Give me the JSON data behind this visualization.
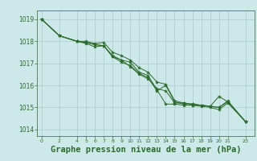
{
  "background_color": "#cce8e8",
  "grid_color": "#aacccc",
  "line_color": "#2d6b2d",
  "marker_color": "#2d6b2d",
  "title": "Graphe pression niveau de la mer (hPa)",
  "title_fontsize": 7.5,
  "ylim": [
    1013.7,
    1019.4
  ],
  "yticks": [
    1014,
    1015,
    1016,
    1017,
    1018,
    1019
  ],
  "xlim": [
    -0.5,
    24.0
  ],
  "xticks": [
    0,
    2,
    4,
    5,
    6,
    7,
    8,
    9,
    10,
    11,
    12,
    13,
    14,
    15,
    16,
    17,
    18,
    19,
    20,
    21,
    23
  ],
  "series": [
    [
      0,
      1019.0,
      2,
      1018.25,
      4,
      1018.0,
      5,
      1017.95,
      6,
      1017.85,
      7,
      1017.8,
      8,
      1017.35,
      9,
      1017.15,
      10,
      1017.05,
      11,
      1016.6,
      12,
      1016.45,
      13,
      1015.8,
      14,
      1015.15,
      15,
      1015.15,
      16,
      1015.1,
      17,
      1015.1,
      18,
      1015.1,
      19,
      1015.05,
      20,
      1015.5,
      21,
      1015.25,
      23,
      1014.35
    ],
    [
      0,
      1019.0,
      2,
      1018.25,
      4,
      1018.0,
      5,
      1017.9,
      6,
      1017.75,
      7,
      1017.8,
      8,
      1017.3,
      9,
      1017.05,
      10,
      1016.9,
      11,
      1016.55,
      12,
      1016.35,
      13,
      1015.75,
      14,
      1016.0,
      15,
      1015.25,
      16,
      1015.15,
      17,
      1015.1,
      18,
      1015.05,
      19,
      1015.0,
      20,
      1014.9,
      21,
      1015.2,
      23,
      1014.35
    ],
    [
      0,
      1019.0,
      2,
      1018.25,
      4,
      1018.0,
      5,
      1018.0,
      6,
      1017.9,
      7,
      1017.95,
      8,
      1017.5,
      9,
      1017.35,
      10,
      1017.15,
      11,
      1016.8,
      12,
      1016.6,
      13,
      1016.15,
      14,
      1016.05,
      15,
      1015.3,
      16,
      1015.2,
      17,
      1015.15,
      18,
      1015.1,
      19,
      1015.05,
      20,
      1015.0,
      21,
      1015.3,
      23,
      1014.35
    ],
    [
      0,
      1019.0,
      2,
      1018.25,
      4,
      1018.0,
      5,
      1017.95,
      6,
      1017.85,
      7,
      1017.8,
      8,
      1017.3,
      9,
      1017.15,
      10,
      1016.85,
      11,
      1016.5,
      12,
      1016.3,
      13,
      1015.85,
      14,
      1015.75,
      15,
      1015.2,
      16,
      1015.2,
      17,
      1015.15,
      18,
      1015.1,
      19,
      1015.05,
      20,
      1015.0,
      21,
      1015.25,
      23,
      1014.35
    ]
  ]
}
